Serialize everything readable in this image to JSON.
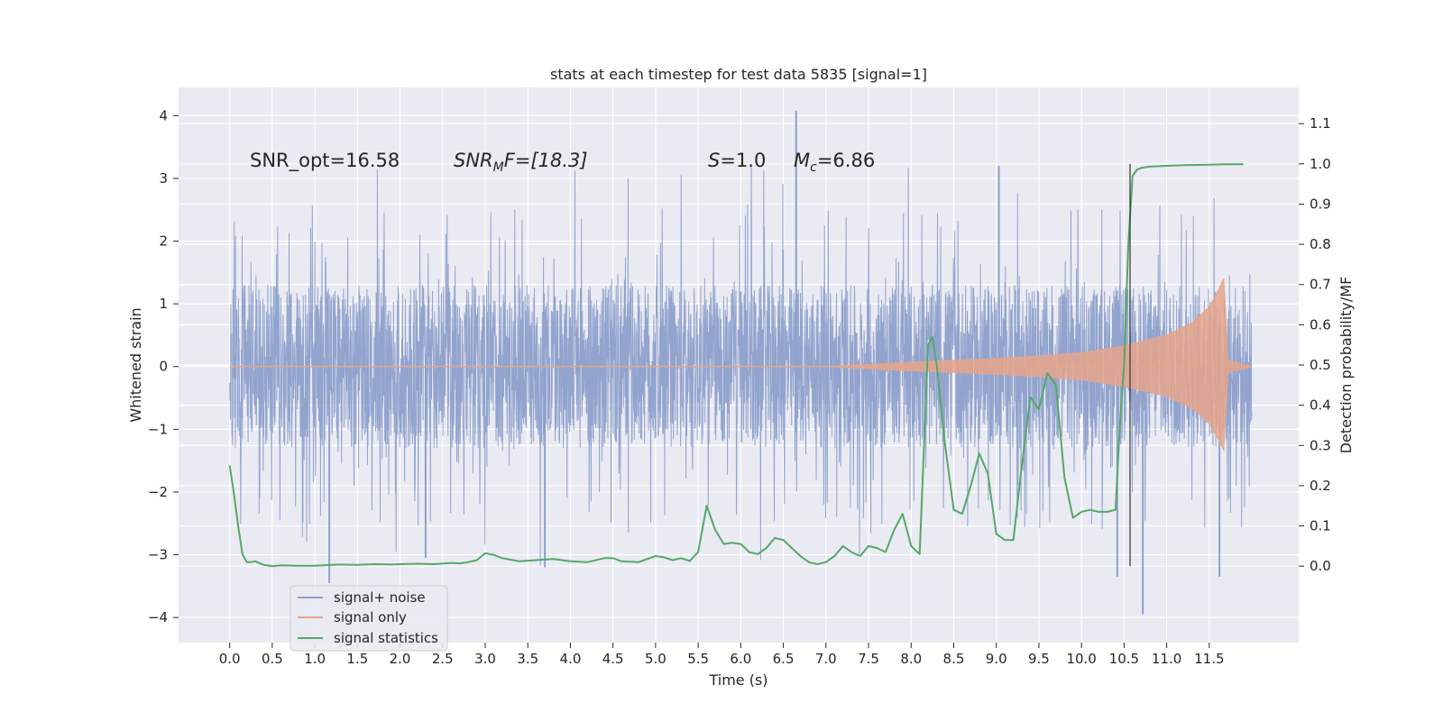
{
  "chart_data": {
    "type": "line",
    "title": "stats at each timestep for test data 5835 [signal=1]",
    "xlabel": "Time (s)",
    "ylabel_left": "Whitened strain",
    "ylabel_right": "Detection probability/MF",
    "xlim": [
      -0.6,
      12.55
    ],
    "ylim_left": [
      -4.4,
      4.45
    ],
    "ylim_right": [
      -0.19,
      1.19
    ],
    "x_ticks": [
      "0.0",
      "0.5",
      "1.0",
      "1.5",
      "2.0",
      "2.5",
      "3.0",
      "3.5",
      "4.0",
      "4.5",
      "5.0",
      "5.5",
      "6.0",
      "6.5",
      "7.0",
      "7.5",
      "8.0",
      "8.5",
      "9.0",
      "9.5",
      "10.0",
      "10.5",
      "11.0",
      "11.5"
    ],
    "y_ticks_left": [
      "4",
      "3",
      "2",
      "1",
      "0",
      "−1",
      "−2",
      "−3",
      "−4"
    ],
    "y_ticks_right": [
      "1.1",
      "1.0",
      "0.9",
      "0.8",
      "0.7",
      "0.6",
      "0.5",
      "0.4",
      "0.3",
      "0.2",
      "0.1",
      "0.0"
    ],
    "grid": true,
    "legend_position": "lower-left",
    "annotations": {
      "snr_opt": "SNR_opt=16.58",
      "snr_mf_symbol": "SNR",
      "snr_mf_sub": "M",
      "snr_mf_rest": "F=[18.3]",
      "s_symbol": "S",
      "s_value": "=1.0",
      "mc_symbol": "M",
      "mc_sub": "c",
      "mc_value": "=6.86"
    },
    "vline_x": 10.57,
    "series": [
      {
        "name": "signal+ noise",
        "color": "#8da0cb",
        "axis": "left",
        "description_range": {
          "x_start": 0.0,
          "x_end": 12.0,
          "core_amplitude": 1.3,
          "max_peak": 4.08,
          "min_peak": -3.95
        }
      },
      {
        "name": "signal only",
        "color": "#e5a58b",
        "axis": "left",
        "envelope": [
          [
            7.0,
            0.0
          ],
          [
            8.0,
            0.07
          ],
          [
            9.0,
            0.13
          ],
          [
            9.5,
            0.17
          ],
          [
            10.0,
            0.22
          ],
          [
            10.5,
            0.33
          ],
          [
            11.0,
            0.5
          ],
          [
            11.3,
            0.7
          ],
          [
            11.5,
            0.95
          ],
          [
            11.6,
            1.2
          ],
          [
            11.67,
            1.4
          ],
          [
            11.72,
            0.1
          ],
          [
            12.0,
            0.0
          ]
        ]
      },
      {
        "name": "signal statistics",
        "color": "#55a868",
        "axis": "right",
        "x": [
          0.0,
          0.05,
          0.1,
          0.15,
          0.2,
          0.25,
          0.3,
          0.4,
          0.5,
          0.6,
          0.8,
          1.0,
          1.1,
          1.2,
          1.3,
          1.5,
          1.7,
          1.9,
          2.0,
          2.2,
          2.4,
          2.6,
          2.7,
          2.8,
          2.9,
          3.0,
          3.1,
          3.2,
          3.4,
          3.6,
          3.8,
          4.0,
          4.2,
          4.4,
          4.5,
          4.6,
          4.8,
          5.0,
          5.1,
          5.2,
          5.3,
          5.4,
          5.5,
          5.6,
          5.7,
          5.8,
          5.9,
          6.0,
          6.1,
          6.2,
          6.3,
          6.4,
          6.5,
          6.6,
          6.7,
          6.8,
          6.9,
          7.0,
          7.1,
          7.2,
          7.3,
          7.4,
          7.5,
          7.6,
          7.7,
          7.8,
          7.9,
          8.0,
          8.1,
          8.2,
          8.25,
          8.3,
          8.4,
          8.5,
          8.6,
          8.7,
          8.8,
          8.9,
          9.0,
          9.1,
          9.2,
          9.3,
          9.4,
          9.5,
          9.6,
          9.7,
          9.8,
          9.9,
          10.0,
          10.1,
          10.2,
          10.3,
          10.4,
          10.45,
          10.5,
          10.55,
          10.6,
          10.65,
          10.7,
          10.8,
          11.0,
          11.2,
          11.5,
          11.7,
          11.8,
          11.9
        ],
        "values": [
          0.25,
          0.18,
          0.1,
          0.03,
          0.01,
          0.01,
          0.012,
          0.003,
          0.0,
          0.002,
          0.001,
          0.001,
          0.002,
          0.003,
          0.004,
          0.003,
          0.005,
          0.004,
          0.005,
          0.006,
          0.005,
          0.008,
          0.007,
          0.01,
          0.015,
          0.032,
          0.028,
          0.02,
          0.012,
          0.015,
          0.018,
          0.012,
          0.01,
          0.02,
          0.02,
          0.012,
          0.01,
          0.025,
          0.022,
          0.015,
          0.02,
          0.013,
          0.035,
          0.15,
          0.09,
          0.055,
          0.058,
          0.055,
          0.035,
          0.03,
          0.045,
          0.07,
          0.065,
          0.045,
          0.025,
          0.01,
          0.005,
          0.01,
          0.025,
          0.05,
          0.035,
          0.025,
          0.05,
          0.045,
          0.035,
          0.09,
          0.13,
          0.05,
          0.03,
          0.55,
          0.57,
          0.5,
          0.3,
          0.14,
          0.13,
          0.2,
          0.28,
          0.23,
          0.08,
          0.065,
          0.065,
          0.25,
          0.42,
          0.39,
          0.48,
          0.45,
          0.22,
          0.12,
          0.135,
          0.14,
          0.135,
          0.135,
          0.14,
          0.35,
          0.5,
          0.8,
          0.97,
          0.985,
          0.99,
          0.993,
          0.995,
          0.997,
          0.998,
          0.999,
          0.999,
          0.999
        ]
      }
    ]
  }
}
